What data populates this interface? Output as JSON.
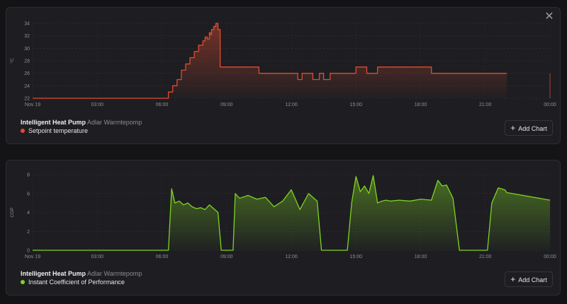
{
  "close_label": "✕",
  "charts": [
    {
      "source": "Intelligent Heat Pump",
      "device": "Adlar Warmtepomp",
      "series_label": "Setpoint temperature",
      "unit": "°C",
      "color": "#e24b2e",
      "add_chart_label": "Add Chart",
      "x_ticks": [
        "Nov 19",
        "03:00",
        "06:00",
        "09:00",
        "12:00",
        "15:00",
        "18:00",
        "21:00",
        "00:00"
      ],
      "y_ticks": [
        "22",
        "24",
        "26",
        "28",
        "30",
        "32",
        "34"
      ]
    },
    {
      "source": "Intelligent Heat Pump",
      "device": "Adlar Warmtepomp",
      "series_label": "Instant Coefficient of Performance",
      "unit": "COP",
      "color": "#7ed321",
      "add_chart_label": "Add Chart",
      "x_ticks": [
        "Nov 19",
        "03:00",
        "06:00",
        "09:00",
        "12:00",
        "15:00",
        "18:00",
        "21:00",
        "00:00"
      ],
      "y_ticks": [
        "0",
        "2",
        "4",
        "6",
        "8"
      ]
    }
  ],
  "chart_data": [
    {
      "type": "area",
      "title": "",
      "ylabel": "°C",
      "series": [
        {
          "name": "Setpoint temperature"
        }
      ],
      "ylim": [
        22,
        34
      ],
      "xlim": [
        0,
        24
      ],
      "x_unit": "hours since Nov 19 00:00",
      "x": [
        0,
        6.0,
        6.3,
        6.5,
        6.7,
        6.9,
        7.1,
        7.3,
        7.5,
        7.7,
        7.9,
        8.0,
        8.1,
        8.2,
        8.25,
        8.3,
        8.4,
        8.5,
        8.6,
        8.7,
        8.8,
        8.9,
        9.0,
        9.5,
        10.0,
        10.5,
        11.0,
        11.5,
        12.0,
        12.3,
        12.5,
        12.8,
        13.0,
        13.3,
        13.5,
        13.8,
        14.0,
        14.5,
        15.0,
        15.5,
        16.0,
        16.5,
        17.0,
        17.5,
        18.0,
        18.5,
        19.0,
        20.0,
        21.0,
        22.0,
        22.2,
        24.0
      ],
      "y": [
        22,
        22,
        23,
        24,
        25,
        26.5,
        27.5,
        28.5,
        29.5,
        30.5,
        31.2,
        31.8,
        31.5,
        32.5,
        32.2,
        33,
        33.5,
        34,
        33,
        27,
        27,
        27,
        27,
        27,
        27,
        26,
        26,
        26,
        26,
        25,
        26,
        26,
        25,
        26,
        25,
        26,
        26,
        26,
        27,
        26,
        27,
        27,
        27,
        27,
        27,
        26,
        26,
        26,
        26,
        26,
        null,
        26
      ]
    },
    {
      "type": "area",
      "title": "",
      "ylabel": "COP",
      "series": [
        {
          "name": "Instant Coefficient of Performance"
        }
      ],
      "ylim": [
        0,
        8
      ],
      "xlim": [
        0,
        24
      ],
      "x_unit": "hours since Nov 19 00:00",
      "x": [
        0,
        6.3,
        6.45,
        6.6,
        6.8,
        7.0,
        7.2,
        7.4,
        7.6,
        7.8,
        8.0,
        8.2,
        8.4,
        8.6,
        8.75,
        8.8,
        9.3,
        9.4,
        9.6,
        10.0,
        10.4,
        10.8,
        11.2,
        11.6,
        12.0,
        12.4,
        12.8,
        13.2,
        13.4,
        13.5,
        14.6,
        14.8,
        15.0,
        15.2,
        15.4,
        15.6,
        15.8,
        16.0,
        16.2,
        16.4,
        16.6,
        17.0,
        17.5,
        18.0,
        18.5,
        18.8,
        19.0,
        19.2,
        19.5,
        19.8,
        19.9,
        21.1,
        21.3,
        21.6,
        21.9,
        22.0,
        24.0
      ],
      "y": [
        0,
        0,
        6.5,
        5.0,
        5.2,
        4.8,
        5.0,
        4.6,
        4.4,
        4.5,
        4.3,
        4.8,
        4.4,
        4.0,
        0,
        0,
        0,
        6.0,
        5.5,
        5.8,
        5.4,
        5.6,
        4.6,
        5.2,
        6.4,
        4.3,
        6.0,
        5.2,
        0,
        0,
        0,
        5.0,
        7.8,
        6.2,
        6.8,
        6.0,
        7.9,
        5.0,
        5.2,
        5.3,
        5.2,
        5.3,
        5.2,
        5.4,
        5.3,
        7.4,
        6.8,
        6.9,
        5.5,
        0,
        0,
        0,
        5.0,
        6.6,
        6.4,
        6.1,
        5.3
      ]
    }
  ]
}
